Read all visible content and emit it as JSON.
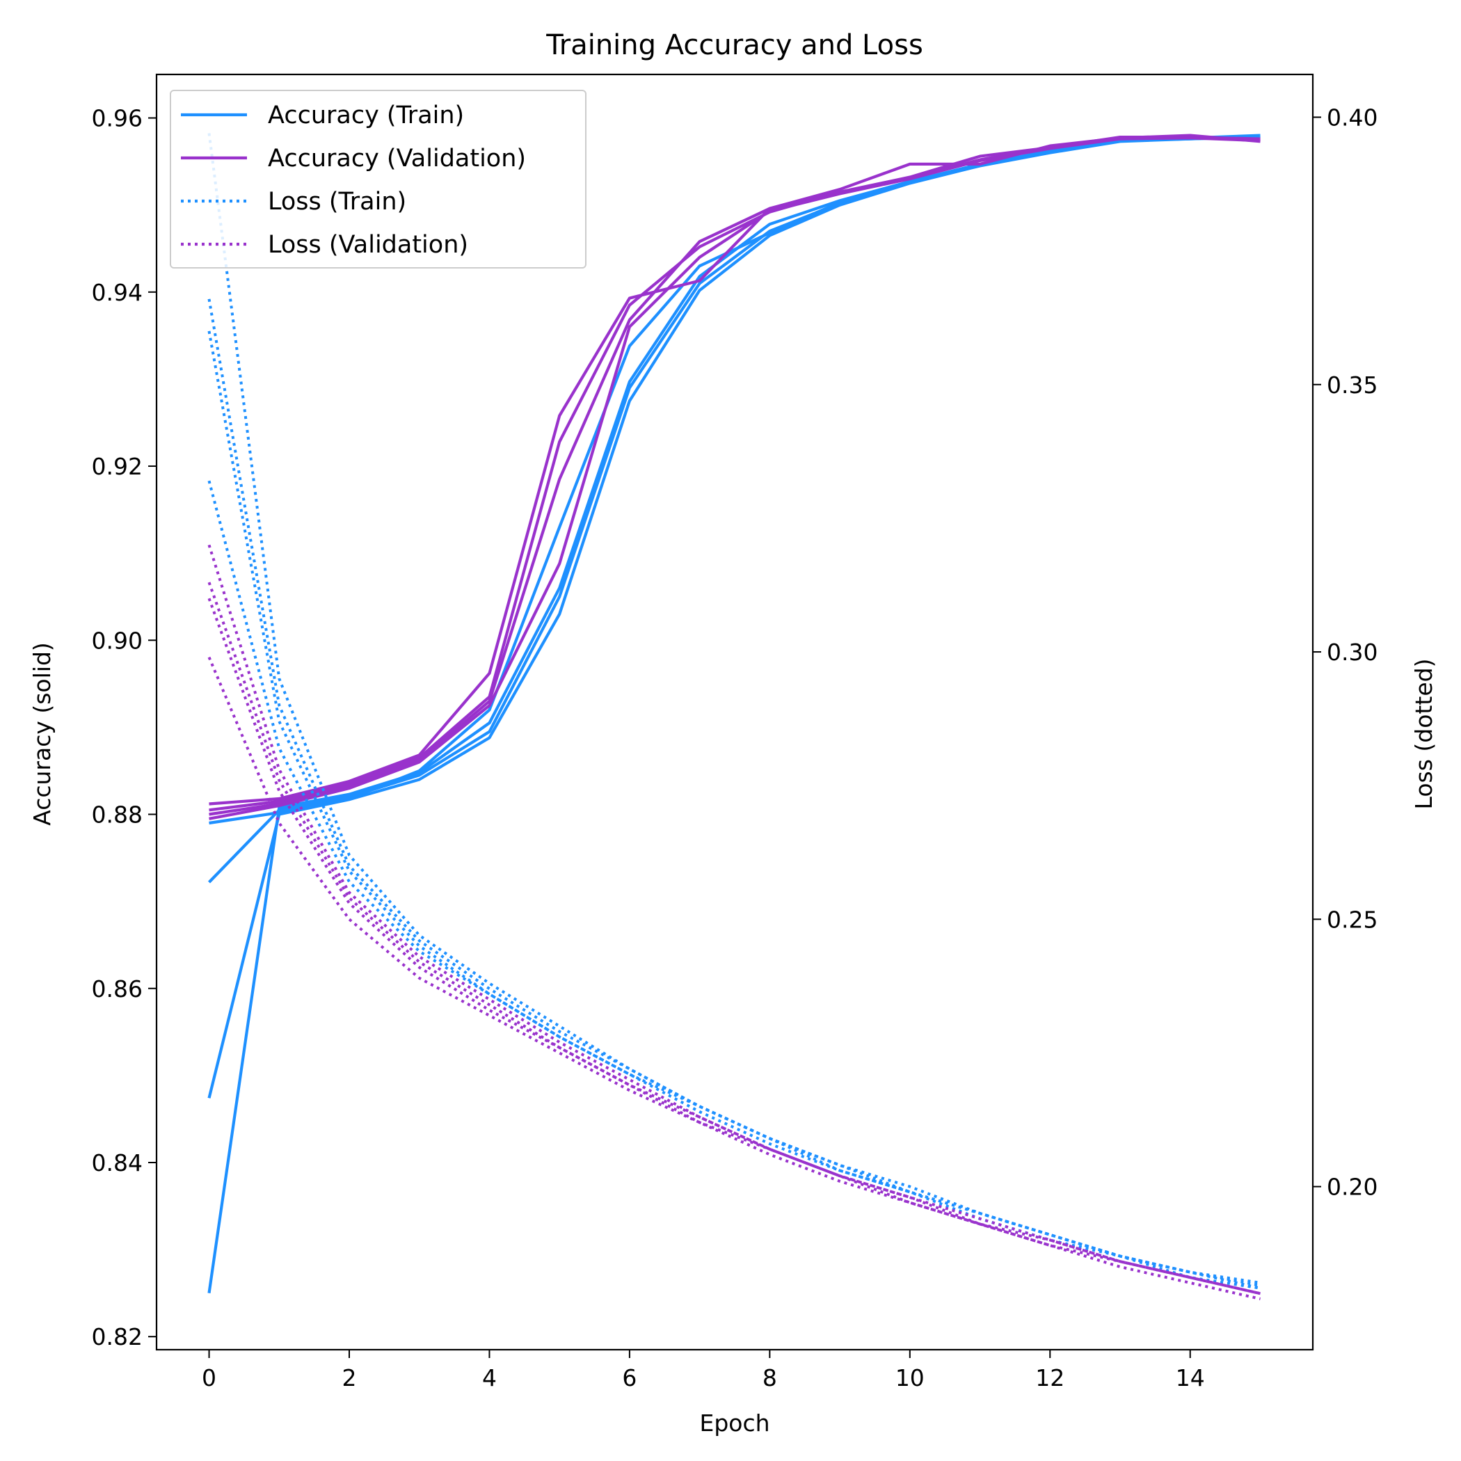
{
  "chart_data": {
    "type": "line",
    "title": "Training Accuracy and Loss",
    "xlabel": "Epoch",
    "ylabel": "Accuracy (solid)",
    "ylabel_right": "Loss (dotted)",
    "xlim": [
      -0.75,
      15.75
    ],
    "ylim": [
      0.8185,
      0.965
    ],
    "ylim_right": [
      0.1695,
      0.408
    ],
    "xticks": [
      0,
      2,
      4,
      6,
      8,
      10,
      12,
      14
    ],
    "yticks": [
      0.82,
      0.84,
      0.86,
      0.88,
      0.9,
      0.92,
      0.94,
      0.96
    ],
    "yticks_right": [
      0.2,
      0.25,
      0.3,
      0.35,
      0.4
    ],
    "ytick_labels": [
      "0.82",
      "0.84",
      "0.86",
      "0.88",
      "0.90",
      "0.92",
      "0.94",
      "0.96"
    ],
    "ytick_labels_right": [
      "0.20",
      "0.25",
      "0.30",
      "0.35",
      "0.40"
    ],
    "grid": false,
    "legend_position": "top-left",
    "colors": {
      "train": "#1e90ff",
      "validation": "#9932cc"
    },
    "x": [
      0,
      1,
      2,
      3,
      4,
      5,
      6,
      7,
      8,
      9,
      10,
      11,
      12,
      13,
      14,
      15
    ],
    "legend": [
      {
        "label": "Accuracy (Train)",
        "color": "#1e90ff",
        "style": "solid"
      },
      {
        "label": "Accuracy (Validation)",
        "color": "#9932cc",
        "style": "solid"
      },
      {
        "label": "Loss (Train)",
        "color": "#1e90ff",
        "style": "dotted"
      },
      {
        "label": "Loss (Validation)",
        "color": "#9932cc",
        "style": "dotted"
      }
    ],
    "series": [
      {
        "group": "Accuracy (Train)",
        "axis": "left",
        "color": "#1e90ff",
        "style": "solid",
        "values": [
          0.825,
          0.8808,
          0.8823,
          0.8848,
          0.8905,
          0.906,
          0.9297,
          0.9418,
          0.9478,
          0.9505,
          0.9527,
          0.9547,
          0.9562,
          0.9575,
          0.9577,
          0.958
        ]
      },
      {
        "group": "Accuracy (Train)",
        "axis": "left",
        "color": "#1e90ff",
        "style": "solid",
        "values": [
          0.8474,
          0.88,
          0.8817,
          0.884,
          0.8888,
          0.903,
          0.9275,
          0.9402,
          0.9465,
          0.95,
          0.9525,
          0.9545,
          0.956,
          0.9573,
          0.9576,
          0.9578
        ]
      },
      {
        "group": "Accuracy (Train)",
        "axis": "left",
        "color": "#1e90ff",
        "style": "solid",
        "values": [
          0.8722,
          0.8805,
          0.882,
          0.8845,
          0.8895,
          0.905,
          0.929,
          0.941,
          0.947,
          0.9502,
          0.9526,
          0.9546,
          0.9561,
          0.9574,
          0.9576,
          0.9579
        ]
      },
      {
        "group": "Accuracy (Train)",
        "axis": "left",
        "color": "#1e90ff",
        "style": "solid",
        "values": [
          0.879,
          0.8802,
          0.8818,
          0.885,
          0.892,
          0.913,
          0.9338,
          0.943,
          0.9468,
          0.9503,
          0.9527,
          0.9546,
          0.9562,
          0.9574,
          0.9577,
          0.9578
        ]
      },
      {
        "group": "Accuracy (Validation)",
        "axis": "left",
        "color": "#9932cc",
        "style": "solid",
        "values": [
          0.8812,
          0.8818,
          0.8838,
          0.8868,
          0.8962,
          0.9258,
          0.9393,
          0.9413,
          0.9496,
          0.9518,
          0.9547,
          0.9547,
          0.9568,
          0.9577,
          0.958,
          0.9573
        ]
      },
      {
        "group": "Accuracy (Validation)",
        "axis": "left",
        "color": "#9932cc",
        "style": "solid",
        "values": [
          0.8805,
          0.8815,
          0.8835,
          0.8865,
          0.8935,
          0.9228,
          0.9385,
          0.9452,
          0.9492,
          0.9515,
          0.9532,
          0.9556,
          0.9566,
          0.9578,
          0.9578,
          0.9576
        ]
      },
      {
        "group": "Accuracy (Validation)",
        "axis": "left",
        "color": "#9932cc",
        "style": "solid",
        "values": [
          0.88,
          0.8812,
          0.8832,
          0.8862,
          0.893,
          0.9185,
          0.9368,
          0.9458,
          0.9496,
          0.9514,
          0.9531,
          0.9552,
          0.9566,
          0.9576,
          0.9578,
          0.9575
        ]
      },
      {
        "group": "Accuracy (Validation)",
        "axis": "left",
        "color": "#9932cc",
        "style": "solid",
        "values": [
          0.8795,
          0.881,
          0.883,
          0.886,
          0.8925,
          0.9088,
          0.936,
          0.944,
          0.9493,
          0.9513,
          0.953,
          0.9551,
          0.9565,
          0.9576,
          0.9577,
          0.9574
        ]
      },
      {
        "group": "Loss (Train)",
        "axis": "right",
        "color": "#1e90ff",
        "style": "dotted",
        "values": [
          0.397,
          0.295,
          0.262,
          0.247,
          0.238,
          0.23,
          0.222,
          0.215,
          0.209,
          0.204,
          0.2,
          0.195,
          0.191,
          0.187,
          0.184,
          0.181
        ]
      },
      {
        "group": "Loss (Train)",
        "axis": "right",
        "color": "#1e90ff",
        "style": "dotted",
        "values": [
          0.366,
          0.29,
          0.26,
          0.246,
          0.237,
          0.229,
          0.222,
          0.215,
          0.209,
          0.204,
          0.199,
          0.195,
          0.191,
          0.187,
          0.184,
          0.1815
        ]
      },
      {
        "group": "Loss (Train)",
        "axis": "right",
        "color": "#1e90ff",
        "style": "dotted",
        "values": [
          0.36,
          0.287,
          0.259,
          0.245,
          0.236,
          0.228,
          0.221,
          0.215,
          0.209,
          0.203,
          0.199,
          0.195,
          0.191,
          0.187,
          0.184,
          0.182
        ]
      },
      {
        "group": "Loss (Train)",
        "axis": "right",
        "color": "#1e90ff",
        "style": "dotted",
        "values": [
          0.332,
          0.282,
          0.257,
          0.244,
          0.236,
          0.228,
          0.221,
          0.214,
          0.208,
          0.203,
          0.199,
          0.194,
          0.19,
          0.187,
          0.183,
          0.181
        ]
      },
      {
        "group": "Loss (Validation)",
        "axis": "right",
        "color": "#9932cc",
        "style": "dotted",
        "values": [
          0.32,
          0.278,
          0.255,
          0.243,
          0.235,
          0.227,
          0.22,
          0.213,
          0.207,
          0.202,
          0.198,
          0.194,
          0.19,
          0.186,
          0.183,
          0.18
        ]
      },
      {
        "group": "Loss (Validation)",
        "axis": "right",
        "color": "#9932cc",
        "style": "dotted",
        "values": [
          0.313,
          0.276,
          0.254,
          0.242,
          0.234,
          0.226,
          0.219,
          0.213,
          0.207,
          0.202,
          0.198,
          0.193,
          0.19,
          0.186,
          0.183,
          0.18
        ]
      },
      {
        "group": "Loss (Validation)",
        "axis": "right",
        "color": "#9932cc",
        "style": "dotted",
        "values": [
          0.31,
          0.274,
          0.253,
          0.241,
          0.233,
          0.226,
          0.219,
          0.212,
          0.207,
          0.202,
          0.197,
          0.193,
          0.189,
          0.186,
          0.183,
          0.18
        ]
      },
      {
        "group": "Loss (Validation)",
        "axis": "right",
        "color": "#9932cc",
        "style": "dotted",
        "values": [
          0.299,
          0.268,
          0.25,
          0.239,
          0.232,
          0.225,
          0.218,
          0.212,
          0.206,
          0.201,
          0.197,
          0.193,
          0.189,
          0.185,
          0.182,
          0.179
        ]
      }
    ]
  }
}
